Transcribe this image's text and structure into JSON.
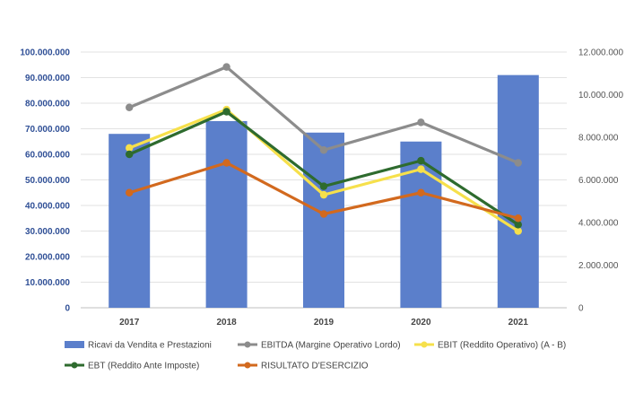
{
  "chart_data": {
    "type": "bar",
    "categories": [
      "2017",
      "2018",
      "2019",
      "2020",
      "2021"
    ],
    "bar_series": {
      "name": "Ricavi da Vendita e Prestazioni",
      "axis": "left",
      "color": "#5b7fcb",
      "values": [
        68000000,
        73000000,
        68500000,
        65000000,
        91000000
      ]
    },
    "line_series": [
      {
        "name": "EBITDA (Margine Operativo Lordo)",
        "axis": "right",
        "color": "#8c8c8c",
        "values": [
          9400000,
          11300000,
          7400000,
          8700000,
          6800000
        ]
      },
      {
        "name": "EBIT (Reddito Operativo) (A - B)",
        "axis": "right",
        "color": "#f6e04b",
        "values": [
          7500000,
          9300000,
          5300000,
          6500000,
          3600000
        ]
      },
      {
        "name": "EBT (Reddito Ante Imposte)",
        "axis": "right",
        "color": "#2e6b2e",
        "values": [
          7200000,
          9200000,
          5700000,
          6900000,
          3900000
        ]
      },
      {
        "name": "RISULTATO D'ESERCIZIO",
        "axis": "right",
        "color": "#d2691e",
        "values": [
          5400000,
          6800000,
          4400000,
          5400000,
          4200000
        ]
      }
    ],
    "left_axis": {
      "range": [
        0,
        100000000
      ],
      "ticks": [
        0,
        10000000,
        20000000,
        30000000,
        40000000,
        50000000,
        60000000,
        70000000,
        80000000,
        90000000,
        100000000
      ],
      "tick_labels": [
        "0",
        "10.000.000",
        "20.000.000",
        "30.000.000",
        "40.000.000",
        "50.000.000",
        "60.000.000",
        "70.000.000",
        "80.000.000",
        "90.000.000",
        "100.000.000"
      ]
    },
    "right_axis": {
      "range": [
        0,
        12000000
      ],
      "ticks": [
        0,
        2000000,
        4000000,
        6000000,
        8000000,
        10000000,
        12000000
      ],
      "tick_labels": [
        "0",
        "2.000.000",
        "4.000.000",
        "6.000.000",
        "8.000.000",
        "10.000.000",
        "12.000.000"
      ]
    },
    "grid": true,
    "legend_position": "bottom",
    "title": "",
    "xlabel": "",
    "ylabel": ""
  }
}
